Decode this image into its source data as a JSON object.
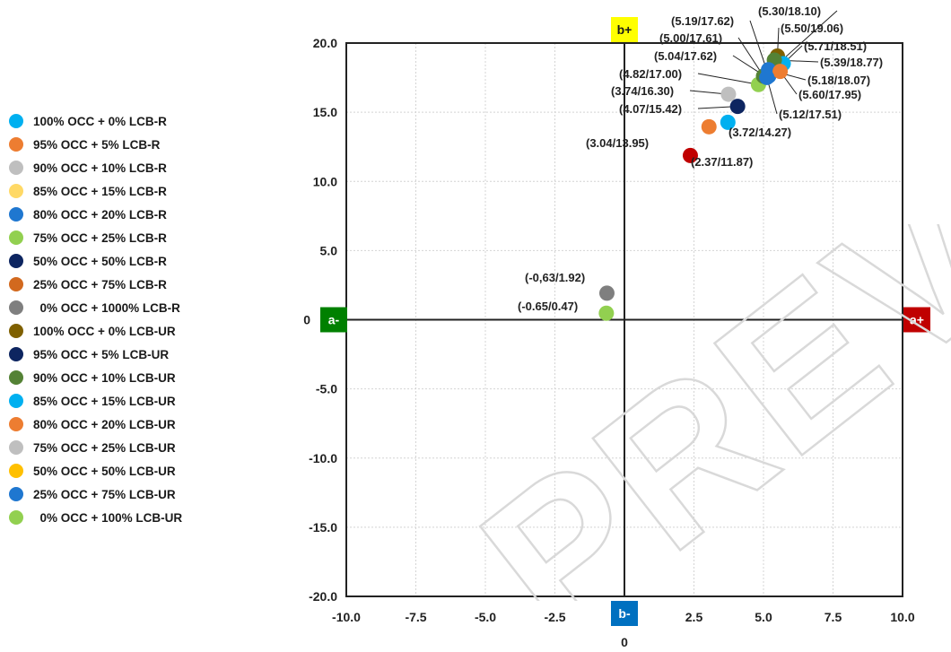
{
  "chart_data": {
    "type": "scatter",
    "title": "",
    "xlabel": "",
    "ylabel": "",
    "xlim": [
      -10,
      10
    ],
    "ylim": [
      -20,
      20
    ],
    "x_ticks": [
      "-10.0",
      "-7.5",
      "-5.0",
      "-2.5",
      "2.5",
      "5.0",
      "7.5",
      "10.0"
    ],
    "x_tick_values": [
      -10,
      -7.5,
      -5,
      -2.5,
      2.5,
      5,
      7.5,
      10
    ],
    "y_ticks": [
      "20.0",
      "15.0",
      "10.0",
      "5.0",
      "-5.0",
      "-10.0",
      "-15.0",
      "-20.0"
    ],
    "y_tick_values": [
      20,
      15,
      10,
      5,
      -5,
      -10,
      -15,
      -20
    ],
    "origin_labels": {
      "x": "0",
      "y": "0"
    },
    "grid": true,
    "legend_position": "left",
    "axis_badges": [
      {
        "text": "b+",
        "bg": "#ffff00",
        "fg": "#1a1a1a"
      },
      {
        "text": "b-",
        "bg": "#0070c0",
        "fg": "#ffffff"
      },
      {
        "text": "a-",
        "bg": "#008000",
        "fg": "#ffffff"
      },
      {
        "text": "a+",
        "bg": "#c00000",
        "fg": "#ffffff"
      }
    ],
    "series": [
      {
        "name": "100% OCC + 0% LCB-R",
        "color": "#00b0f0"
      },
      {
        "name": "95% OCC + 5% LCB-R",
        "color": "#ed7d31"
      },
      {
        "name": "90% OCC + 10% LCB-R",
        "color": "#bfbfbf"
      },
      {
        "name": "85% OCC + 15% LCB-R",
        "color": "#ffd966"
      },
      {
        "name": "80% OCC + 20% LCB-R",
        "color": "#1f77d0"
      },
      {
        "name": "75% OCC + 25% LCB-R",
        "color": "#92d050"
      },
      {
        "name": "50% OCC + 50% LCB-R",
        "color": "#0d2560"
      },
      {
        "name": "25% OCC + 75% LCB-R",
        "color": "#d2691e"
      },
      {
        "name": "  0% OCC + 1000% LCB-R",
        "color": "#7f7f7f"
      },
      {
        "name": "100% OCC + 0% LCB-UR",
        "color": "#7f6000"
      },
      {
        "name": "95% OCC + 5% LCB-UR",
        "color": "#0d2560"
      },
      {
        "name": "90% OCC + 10% LCB-UR",
        "color": "#548235"
      },
      {
        "name": "85% OCC + 15% LCB-UR",
        "color": "#00b0f0"
      },
      {
        "name": "80% OCC + 20% LCB-UR",
        "color": "#ed7d31"
      },
      {
        "name": "75% OCC + 25% LCB-UR",
        "color": "#bfbfbf"
      },
      {
        "name": "50% OCC + 50% LCB-UR",
        "color": "#ffc000"
      },
      {
        "name": "25% OCC + 75% LCB-UR",
        "color": "#1f77d0"
      },
      {
        "name": "  0% OCC + 100% LCB-UR",
        "color": "#92d050"
      }
    ],
    "points": [
      {
        "x": 2.37,
        "y": 11.87,
        "label": "(2.37/11.87)",
        "color": "#c00000"
      },
      {
        "x": 3.04,
        "y": 13.95,
        "label": "(3.04/13.95)",
        "color": "#ed7d31"
      },
      {
        "x": 3.72,
        "y": 14.27,
        "label": "(3.72/14.27)",
        "color": "#00b0f0"
      },
      {
        "x": 4.07,
        "y": 15.42,
        "label": "(4.07/15.42)",
        "color": "#0d2560"
      },
      {
        "x": 3.74,
        "y": 16.3,
        "label": "(3.74/16.30)",
        "color": "#bfbfbf"
      },
      {
        "x": 4.82,
        "y": 17.0,
        "label": "(4.82/17.00)",
        "color": "#92d050"
      },
      {
        "x": 5.04,
        "y": 17.62,
        "label": "(5.04/17.62)",
        "color": "#00b0f0"
      },
      {
        "x": 5.0,
        "y": 17.61,
        "label": "(5.00/17.61)",
        "color": "#548235"
      },
      {
        "x": 5.19,
        "y": 17.62,
        "label": "(5.19/17.62)",
        "color": "#1f77d0"
      },
      {
        "x": 5.3,
        "y": 18.1,
        "label": "(5.30/18.10)",
        "color": "#0d2560"
      },
      {
        "x": 5.5,
        "y": 19.06,
        "label": "(5.50/19.06)",
        "color": "#7f6000"
      },
      {
        "x": 5.71,
        "y": 18.51,
        "label": "(5.71/18.51)",
        "color": "#00b0f0"
      },
      {
        "x": 5.39,
        "y": 18.77,
        "label": "(5.39/18.77)",
        "color": "#548235"
      },
      {
        "x": 5.18,
        "y": 18.07,
        "label": "(5.18/18.07)",
        "color": "#1f77d0"
      },
      {
        "x": 5.6,
        "y": 17.95,
        "label": "(5.60/17.95)",
        "color": "#ed7d31"
      },
      {
        "x": 5.12,
        "y": 17.51,
        "label": "(5.12/17.51)",
        "color": "#1f77d0"
      },
      {
        "x": -0.63,
        "y": 1.92,
        "label": "(-0,63/1.92)",
        "color": "#7f7f7f"
      },
      {
        "x": -0.65,
        "y": 0.47,
        "label": "(-0.65/0.47)",
        "color": "#92d050"
      }
    ]
  },
  "watermark": {
    "text": "PREVIEW"
  }
}
